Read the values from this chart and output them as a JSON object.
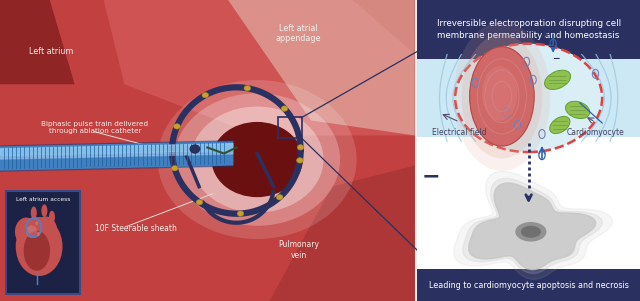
{
  "right_header_text": "Irreversible electroporation disrupting cell\nmembrane permeability and homeostasis",
  "right_footer_text": "Leading to cardiomyocyte apoptosis and necrosis",
  "label_left_atrium": "Left atrium",
  "label_left_atrial_appendage": "Left atrial\nappendage",
  "label_biphasic": "Biphasic pulse train delivered\nthrough ablation catheter",
  "label_steerable": "10F Steerable sheath",
  "label_pulmonary": "Pulmonary\nvein",
  "label_left_atrium_access": "Left atrium access",
  "label_electrical_field": "Electrical field",
  "label_cardiomyocyte": "Cardiomyocyte",
  "figsize": [
    6.4,
    3.01
  ],
  "dpi": 100
}
